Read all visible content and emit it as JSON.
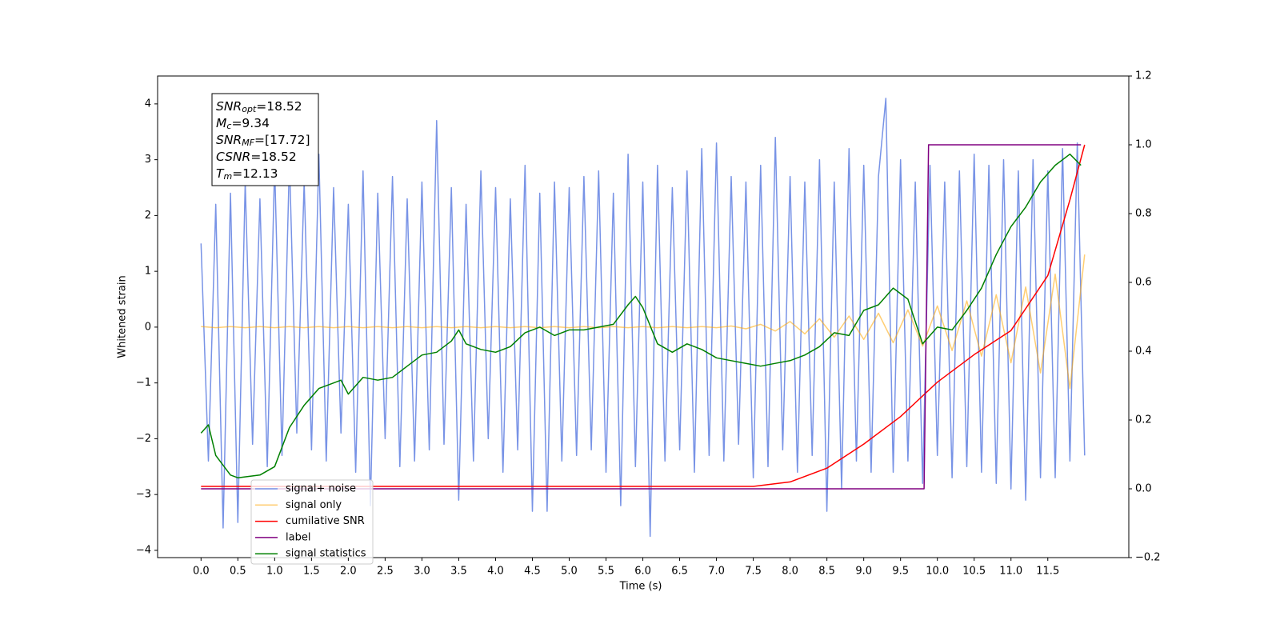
{
  "chart_data": {
    "type": "line",
    "xlabel": "Time (s)",
    "ylabel": "Whitened strain",
    "xlim": [
      -0.59,
      12.6
    ],
    "ylim": [
      -4.13,
      4.5
    ],
    "y2lim": [
      -0.2,
      1.2
    ],
    "xticks": [
      {
        "value": 0,
        "label": "0.0"
      },
      0.5,
      {
        "value": 1,
        "label": "1.0"
      },
      1.5,
      {
        "value": 2,
        "label": "2.0"
      },
      2.5,
      {
        "value": 3,
        "label": "3.0"
      },
      3.5,
      {
        "value": 4,
        "label": "4.0"
      },
      4.5,
      {
        "value": 5,
        "label": "5.0"
      },
      5.5,
      {
        "value": 6,
        "label": "6.0"
      },
      6.5,
      {
        "value": 7,
        "label": "7.0"
      },
      7.5,
      {
        "value": 8,
        "label": "8.0"
      },
      8.5,
      {
        "value": 9,
        "label": "9.0"
      },
      9.5,
      {
        "value": 10,
        "label": "10.0"
      },
      10.5,
      {
        "value": 11,
        "label": "11.0"
      },
      11.5
    ],
    "yticks": [
      {
        "value": -4,
        "label": "−4"
      },
      {
        "value": -3,
        "label": "−3"
      },
      {
        "value": -2,
        "label": "−2"
      },
      {
        "value": -1,
        "label": "−1"
      },
      0,
      1,
      2,
      3,
      4
    ],
    "y2ticks": [
      {
        "value": -0.2,
        "label": "−0.2"
      },
      {
        "value": 0,
        "label": "0.0"
      },
      0.2,
      0.4,
      0.6,
      0.8,
      {
        "value": 1,
        "label": "1.0"
      },
      1.2
    ],
    "annotations": [
      {
        "base": "SNR",
        "sub": "opt",
        "text": "=18.52"
      },
      {
        "base": "M",
        "sub": "c",
        "text": "=9.34"
      },
      {
        "base": "SNR",
        "sub": "MF",
        "text": "=[17.72]"
      },
      {
        "base": "CSNR",
        "text": "=18.52"
      },
      {
        "base": "T",
        "sub": "m",
        "text": "=12.13"
      }
    ],
    "legend": "lower left",
    "series": [
      {
        "name": "signal+ noise",
        "color": "#7893e6",
        "x": [
          0,
          0.1,
          0.2,
          0.3,
          0.4,
          0.5,
          0.6,
          0.7,
          0.8,
          0.9,
          1,
          1.1,
          1.2,
          1.3,
          1.4,
          1.5,
          1.6,
          1.7,
          1.8,
          1.9,
          2,
          2.1,
          2.2,
          2.3,
          2.4,
          2.5,
          2.6,
          2.7,
          2.8,
          2.9,
          3,
          3.1,
          3.2,
          3.3,
          3.4,
          3.5,
          3.6,
          3.7,
          3.8,
          3.9,
          4,
          4.1,
          4.2,
          4.3,
          4.4,
          4.5,
          4.6,
          4.7,
          4.8,
          4.9,
          5,
          5.1,
          5.2,
          5.3,
          5.4,
          5.5,
          5.6,
          5.7,
          5.8,
          5.9,
          6,
          6.1,
          6.2,
          6.3,
          6.4,
          6.5,
          6.6,
          6.7,
          6.8,
          6.9,
          7,
          7.1,
          7.2,
          7.3,
          7.4,
          7.5,
          7.6,
          7.7,
          7.8,
          7.9,
          8,
          8.1,
          8.2,
          8.3,
          8.4,
          8.5,
          8.6,
          8.7,
          8.8,
          8.9,
          9,
          9.1,
          9.2,
          9.3,
          9.4,
          9.5,
          9.6,
          9.7,
          9.8,
          9.9,
          10,
          10.1,
          10.2,
          10.3,
          10.4,
          10.5,
          10.6,
          10.7,
          10.8,
          10.9,
          11,
          11.1,
          11.2,
          11.3,
          11.4,
          11.5,
          11.6,
          11.7,
          11.8,
          11.9,
          12
        ],
        "values": [
          1.5,
          -2.4,
          2.2,
          -3.6,
          2.4,
          -3.5,
          2.6,
          -2.1,
          2.3,
          -2.5,
          2.9,
          -2.3,
          3.0,
          -1.9,
          2.6,
          -2.2,
          3.1,
          -2.4,
          2.5,
          -1.9,
          2.2,
          -2.6,
          2.8,
          -3.2,
          2.4,
          -2.0,
          2.7,
          -2.5,
          2.3,
          -2.4,
          2.6,
          -2.2,
          3.7,
          -2.1,
          2.5,
          -3.1,
          2.2,
          -2.4,
          2.8,
          -2.0,
          2.5,
          -2.6,
          2.3,
          -2.2,
          2.9,
          -3.3,
          2.4,
          -3.3,
          2.6,
          -2.4,
          2.5,
          -2.3,
          2.7,
          -2.2,
          2.8,
          -2.6,
          2.4,
          -3.2,
          3.1,
          -2.5,
          2.6,
          -3.75,
          2.9,
          -2.4,
          2.5,
          -2.2,
          2.8,
          -2.6,
          3.2,
          -2.3,
          3.3,
          -2.4,
          2.7,
          -2.1,
          2.6,
          -2.7,
          2.9,
          -2.5,
          3.4,
          -2.2,
          2.7,
          -2.6,
          2.6,
          -2.3,
          3.0,
          -3.3,
          2.6,
          -2.9,
          3.2,
          -2.4,
          2.9,
          -2.6,
          2.7,
          4.1,
          -2.6,
          3.0,
          -2.4,
          2.6,
          -2.8,
          2.9,
          -2.3,
          2.6,
          -2.7,
          2.8,
          -2.5,
          3.1,
          -2.6,
          2.9,
          -2.8,
          3.0,
          -2.9,
          2.8,
          -3.1,
          3.0,
          -2.7,
          2.8,
          -2.7,
          3.2,
          -2.4,
          3.3,
          -2.3
        ]
      },
      {
        "name": "signal only",
        "color": "#ffa500",
        "x": [
          0,
          0.2,
          0.4,
          0.6,
          0.8,
          1,
          1.2,
          1.4,
          1.6,
          1.8,
          2,
          2.2,
          2.4,
          2.6,
          2.8,
          3,
          3.2,
          3.4,
          3.6,
          3.8,
          4,
          4.2,
          4.4,
          4.6,
          4.8,
          5,
          5.2,
          5.4,
          5.6,
          5.8,
          6,
          6.2,
          6.4,
          6.6,
          6.8,
          7,
          7.2,
          7.4,
          7.6,
          7.8,
          8,
          8.2,
          8.4,
          8.6,
          8.8,
          9,
          9.2,
          9.4,
          9.6,
          9.8,
          10,
          10.2,
          10.4,
          10.6,
          10.8,
          11,
          11.2,
          11.4,
          11.6,
          11.8,
          12
        ],
        "values": [
          0.01,
          -0.01,
          0.01,
          -0.01,
          0.01,
          -0.01,
          0.01,
          -0.01,
          0.01,
          -0.01,
          0.01,
          -0.01,
          0.01,
          -0.01,
          0.01,
          -0.01,
          0.01,
          -0.01,
          0.01,
          -0.01,
          0.01,
          -0.01,
          0.01,
          -0.01,
          0.01,
          -0.01,
          0.01,
          -0.01,
          0.01,
          -0.01,
          0.01,
          -0.01,
          0.01,
          -0.01,
          0.01,
          -0.01,
          0.02,
          -0.03,
          0.05,
          -0.07,
          0.1,
          -0.12,
          0.15,
          -0.18,
          0.2,
          -0.22,
          0.25,
          -0.28,
          0.31,
          -0.34,
          0.38,
          -0.42,
          0.47,
          -0.52,
          0.58,
          -0.64,
          0.72,
          -0.82,
          0.95,
          -1.1,
          1.3
        ]
      },
      {
        "name": "cumilative SNR",
        "color": "#ff0000",
        "axis": "y2",
        "x": [
          0,
          7.5,
          8.0,
          8.5,
          9.0,
          9.5,
          10.0,
          10.5,
          11.0,
          11.5,
          11.8,
          12.0
        ],
        "values": [
          0.007,
          0.007,
          0.02,
          0.06,
          0.13,
          0.21,
          0.31,
          0.39,
          0.46,
          0.62,
          0.84,
          1.0
        ]
      },
      {
        "name": "label",
        "color": "#800080",
        "axis": "y2",
        "x": [
          0,
          9.82,
          9.88,
          11.95
        ],
        "values": [
          0,
          0,
          1,
          1
        ]
      },
      {
        "name": "signal statistics",
        "color": "#008000",
        "x": [
          0,
          0.1,
          0.2,
          0.4,
          0.5,
          0.8,
          1.0,
          1.2,
          1.4,
          1.6,
          1.8,
          1.9,
          2.0,
          2.2,
          2.4,
          2.6,
          2.8,
          3.0,
          3.2,
          3.4,
          3.5,
          3.6,
          3.8,
          4.0,
          4.2,
          4.4,
          4.6,
          4.8,
          5.0,
          5.2,
          5.4,
          5.6,
          5.8,
          5.9,
          6.0,
          6.2,
          6.4,
          6.6,
          6.8,
          7.0,
          7.2,
          7.4,
          7.6,
          7.8,
          8.0,
          8.2,
          8.4,
          8.6,
          8.8,
          9.0,
          9.2,
          9.4,
          9.6,
          9.8,
          10.0,
          10.2,
          10.4,
          10.6,
          10.8,
          11.0,
          11.2,
          11.4,
          11.6,
          11.8,
          11.95
        ],
        "values": [
          -1.9,
          -1.75,
          -2.3,
          -2.65,
          -2.7,
          -2.65,
          -2.5,
          -1.8,
          -1.4,
          -1.1,
          -1.0,
          -0.95,
          -1.2,
          -0.9,
          -0.95,
          -0.9,
          -0.7,
          -0.5,
          -0.45,
          -0.25,
          -0.05,
          -0.3,
          -0.4,
          -0.45,
          -0.35,
          -0.1,
          0,
          -0.15,
          -0.05,
          -0.05,
          0,
          0.05,
          0.4,
          0.55,
          0.35,
          -0.3,
          -0.45,
          -0.3,
          -0.4,
          -0.55,
          -0.6,
          -0.65,
          -0.7,
          -0.65,
          -0.6,
          -0.5,
          -0.35,
          -0.1,
          -0.15,
          0.3,
          0.4,
          0.7,
          0.5,
          -0.3,
          0,
          -0.05,
          0.3,
          0.7,
          1.3,
          1.8,
          2.15,
          2.6,
          2.9,
          3.1,
          2.9
        ]
      }
    ]
  }
}
